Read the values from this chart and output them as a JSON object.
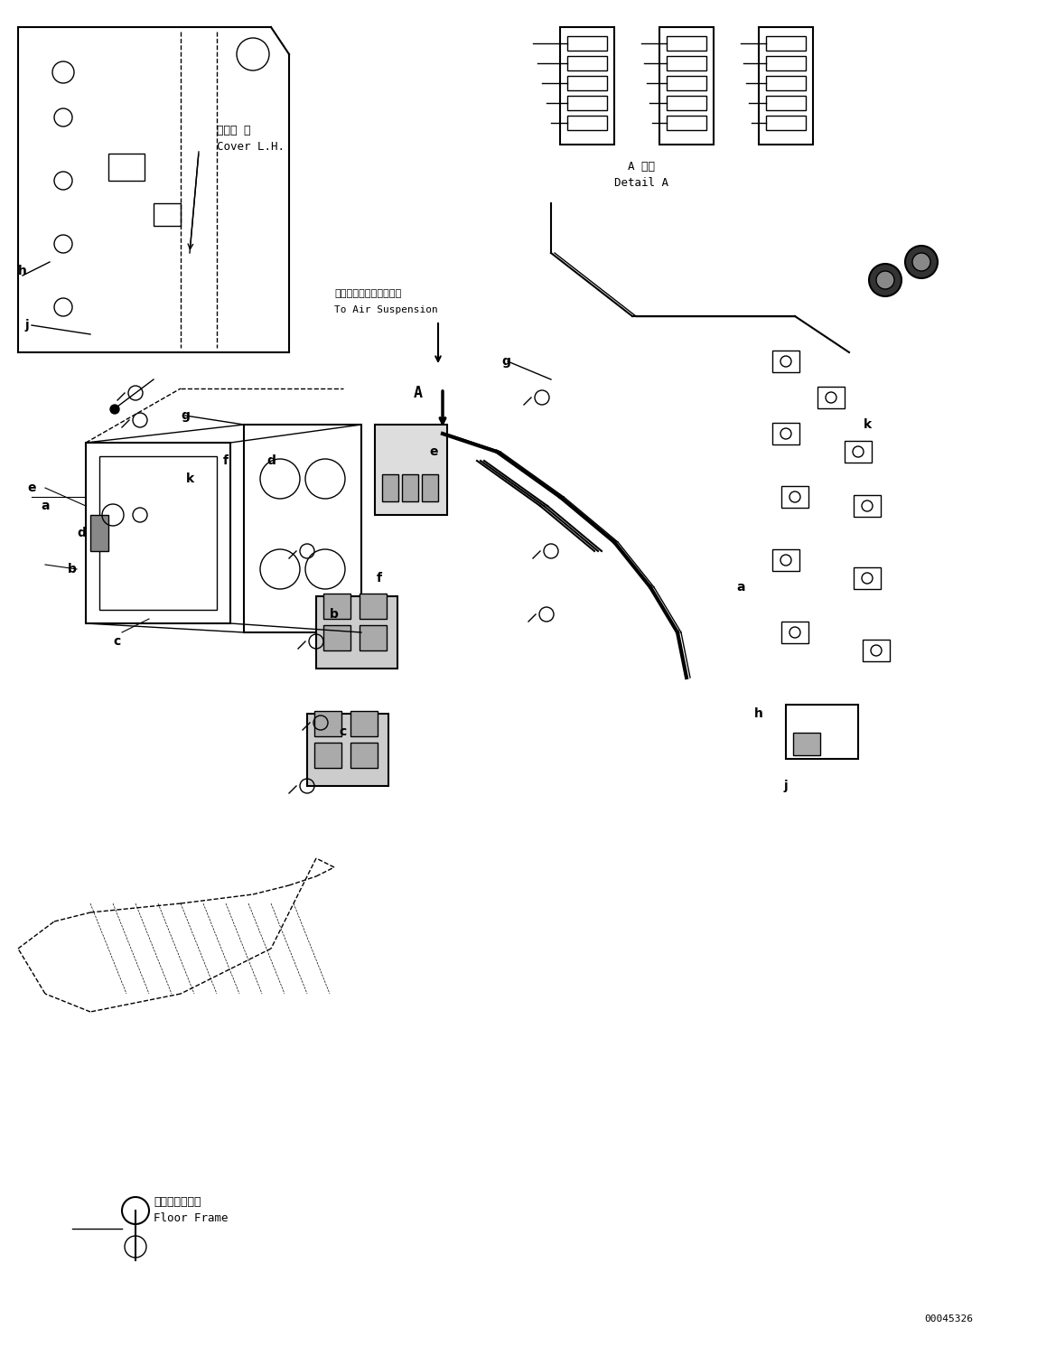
{
  "title": "",
  "background_color": "#ffffff",
  "line_color": "#000000",
  "part_id": "00045326",
  "labels": {
    "cover_lh_jp": "カバー 左",
    "cover_lh_en": "Cover L.H.",
    "detail_a_jp": "A 詳細",
    "detail_a_en": "Detail A",
    "air_suspension_jp": "エアーサスペンションへ",
    "air_suspension_en": "To Air Suspension",
    "floor_frame_jp": "フロアフレーム",
    "floor_frame_en": "Floor Frame"
  },
  "part_labels": [
    "a",
    "b",
    "c",
    "d",
    "e",
    "f",
    "g",
    "h",
    "j",
    "k"
  ],
  "figsize": [
    11.48,
    14.91
  ],
  "dpi": 100
}
